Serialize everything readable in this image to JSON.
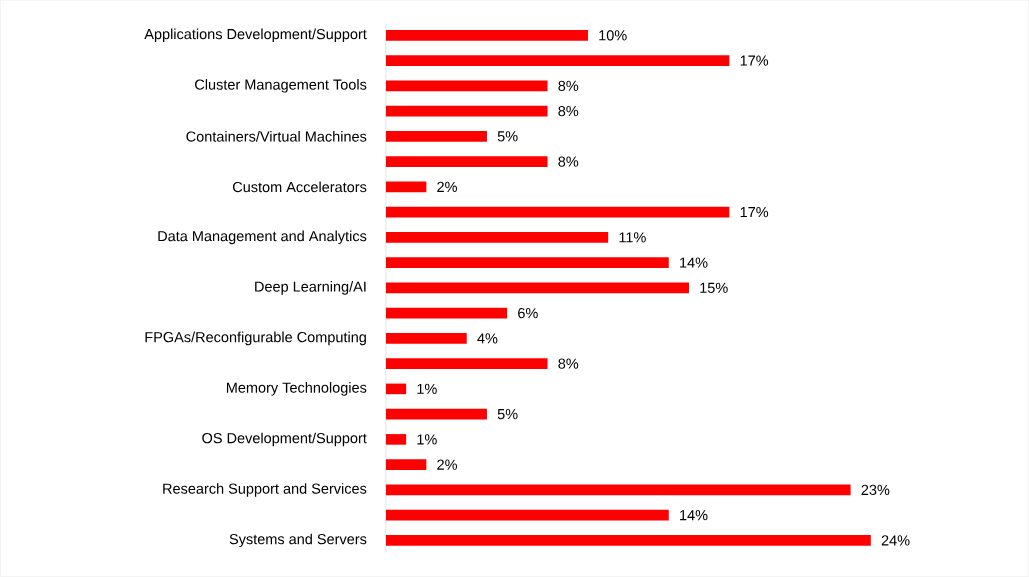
{
  "chart_data": {
    "type": "bar",
    "orientation": "horizontal",
    "color": "#ff0000",
    "tick_labels": "y",
    "categories": [
      "Applications Development/Support",
      null,
      "Cluster Management Tools",
      null,
      "Containers/Virtual Machines",
      null,
      "Custom Accelerators",
      null,
      "Data Management and Analytics",
      null,
      "Deep Learning/AI",
      null,
      "FPGAs/Reconfigurable Computing",
      null,
      "Memory Technologies",
      null,
      "OS Development/Support",
      null,
      "Research Support and Services",
      null,
      "Systems and Servers"
    ],
    "values": [
      10,
      17,
      8,
      8,
      5,
      8,
      2,
      17,
      11,
      14,
      15,
      6,
      4,
      8,
      1,
      5,
      1,
      2,
      23,
      14,
      24
    ],
    "value_labels": [
      "10%",
      "17%",
      "8%",
      "8%",
      "5%",
      "8%",
      "2%",
      "17%",
      "11%",
      "14%",
      "15%",
      "6%",
      "4%",
      "8%",
      "1%",
      "5%",
      "1%",
      "2%",
      "23%",
      "14%",
      "24%"
    ]
  }
}
